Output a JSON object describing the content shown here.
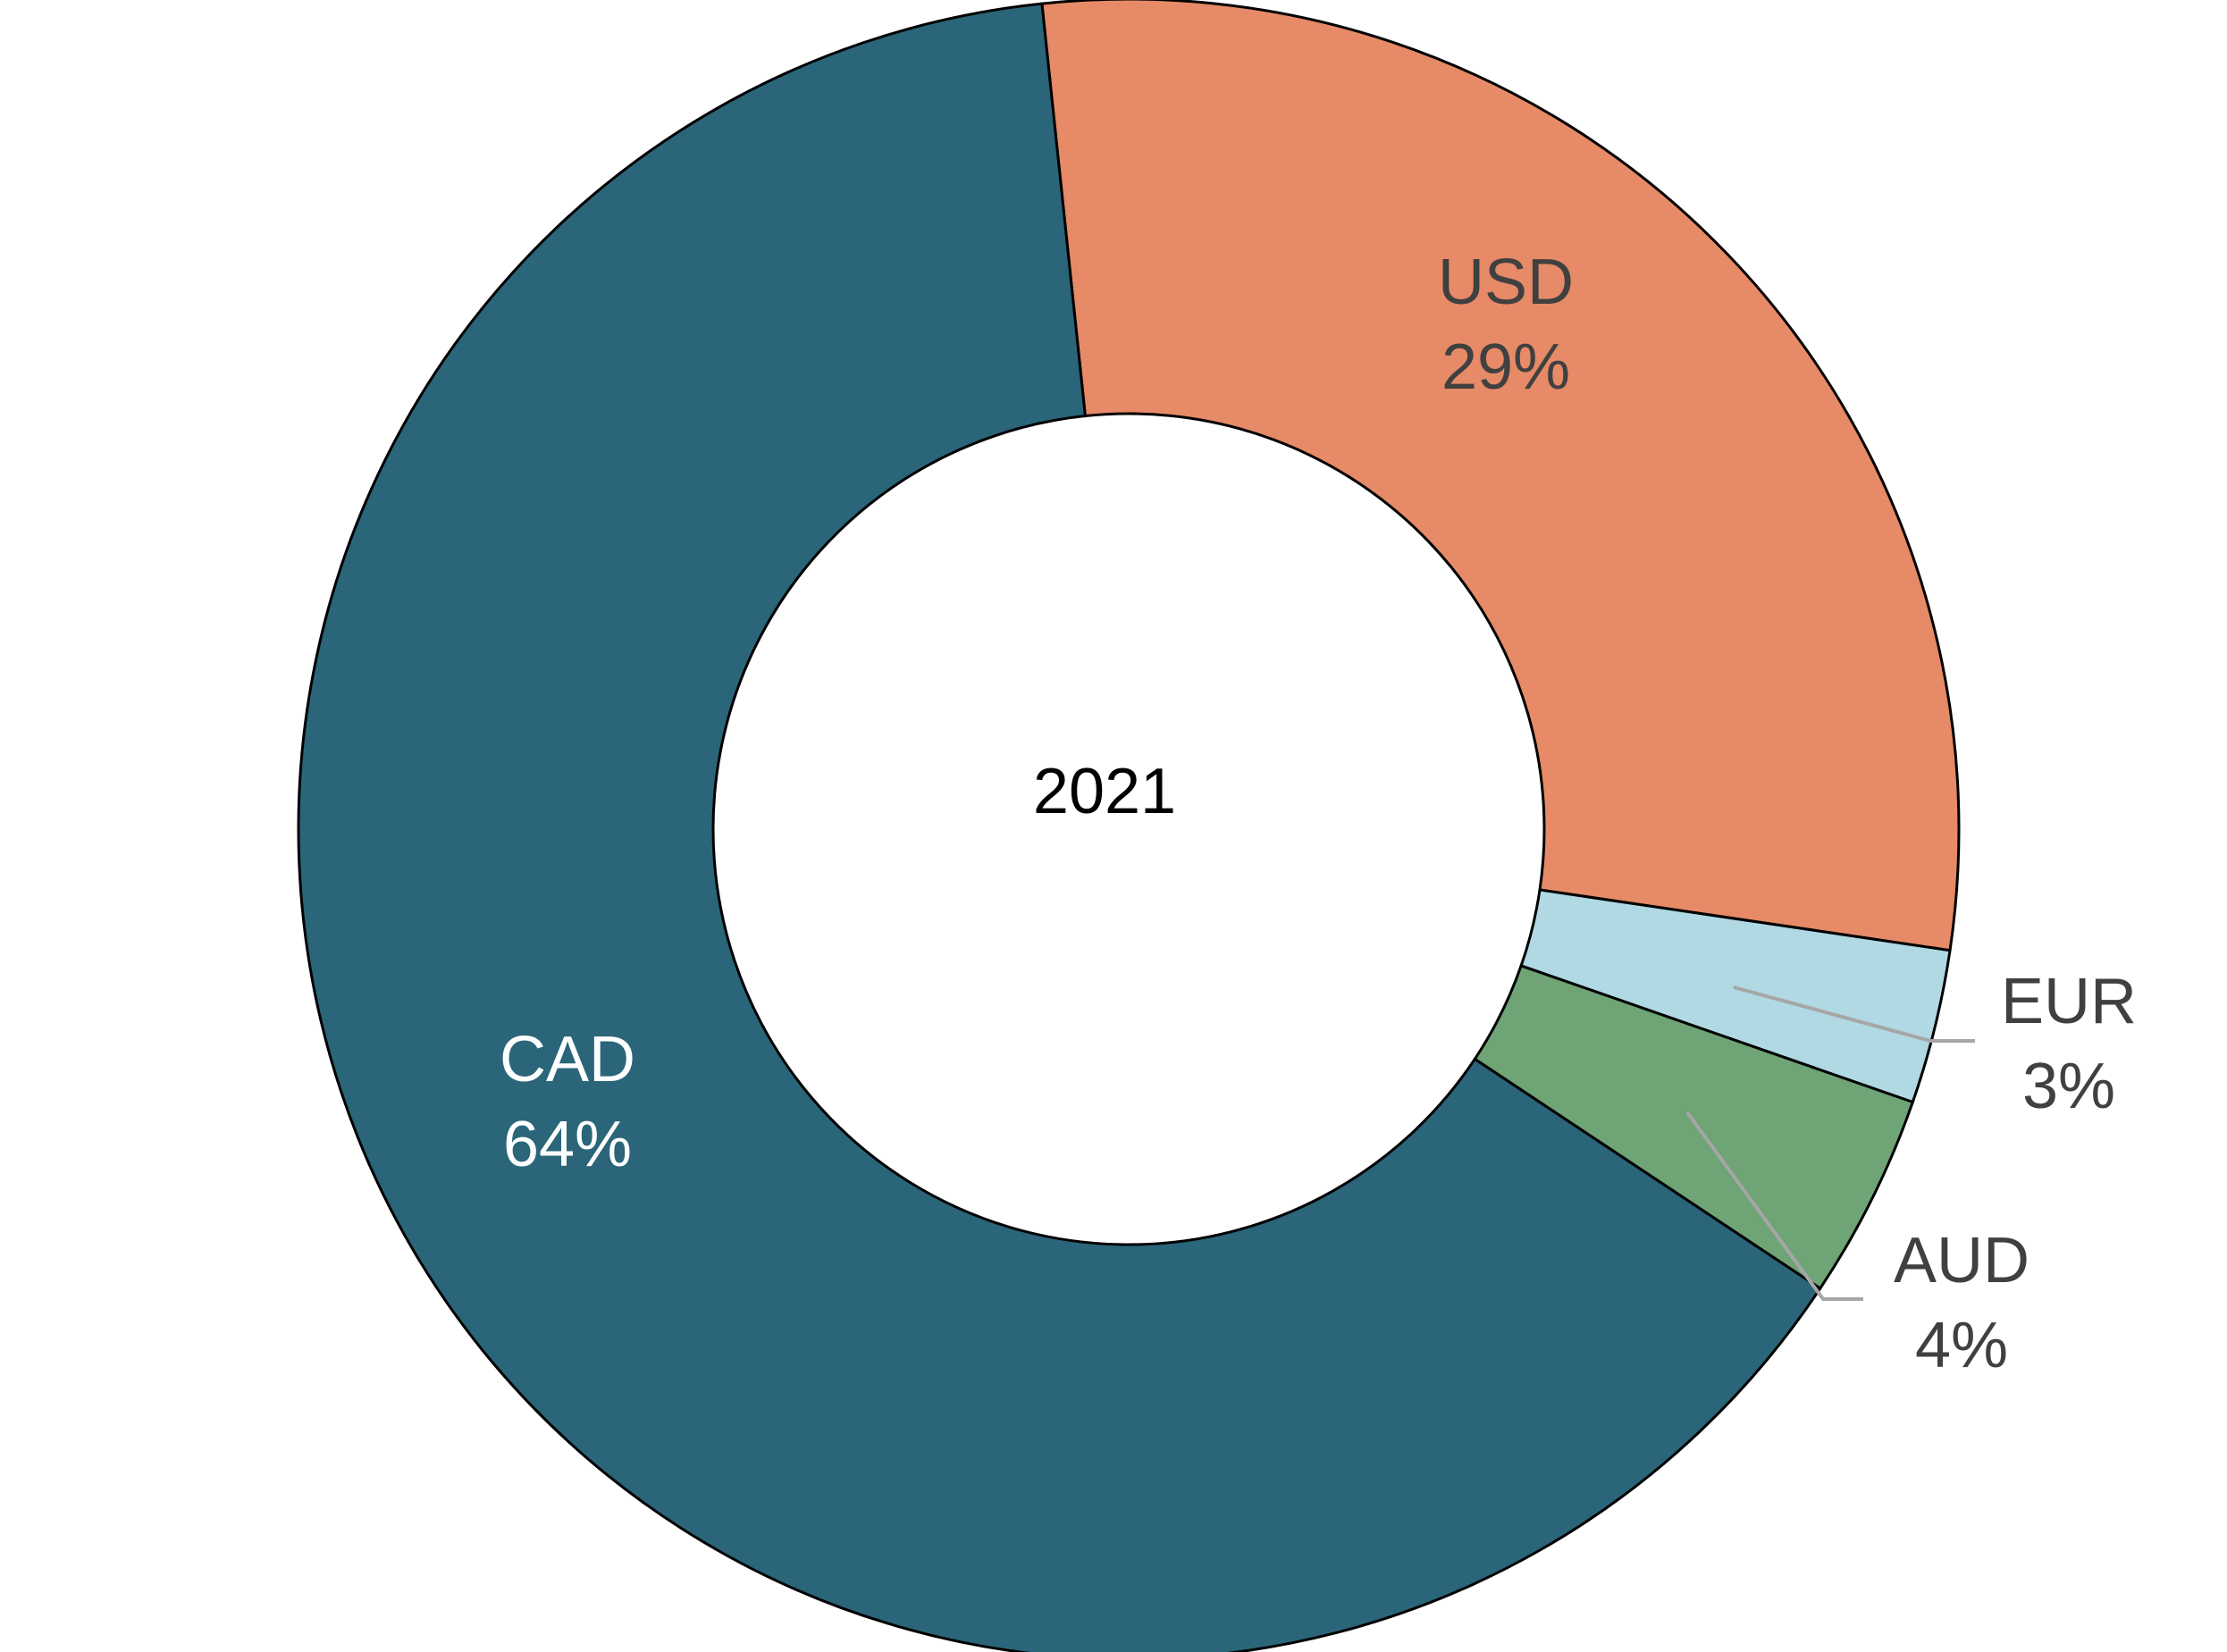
{
  "chart_data": {
    "type": "pie",
    "variant": "donut",
    "center_label": "2021",
    "slices": [
      {
        "label": "USD",
        "value": 29,
        "value_label": "29%",
        "color": "#e68a67",
        "label_color": "#404040"
      },
      {
        "label": "EUR",
        "value": 3,
        "value_label": "3%",
        "color": "#b0d9e4",
        "label_color": "#404040"
      },
      {
        "label": "AUD",
        "value": 4,
        "value_label": "4%",
        "color": "#6ea476",
        "label_color": "#404040"
      },
      {
        "label": "CAD",
        "value": 64,
        "value_label": "64%",
        "color": "#2a6579",
        "label_color": "#ffffff"
      }
    ],
    "start_angle_deg": -6,
    "legend": "none"
  }
}
